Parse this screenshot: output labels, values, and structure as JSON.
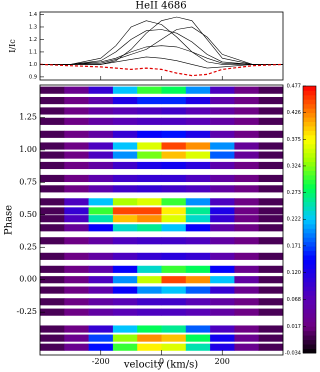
{
  "chart_data": [
    {
      "type": "line",
      "title": "HeII 4686",
      "ylabel": "I/Ic",
      "x": [
        -400,
        -300,
        -200,
        -150,
        -100,
        -50,
        0,
        50,
        100,
        150,
        200,
        300,
        400
      ],
      "series": [
        {
          "color": "#000000",
          "values": [
            1.0,
            1.0,
            1.05,
            1.15,
            1.3,
            1.35,
            1.32,
            1.22,
            1.1,
            1.02,
            1.0,
            1.0,
            1.0
          ]
        },
        {
          "color": "#000000",
          "values": [
            1.0,
            1.0,
            1.0,
            1.03,
            1.12,
            1.25,
            1.35,
            1.38,
            1.35,
            1.2,
            1.05,
            1.0,
            1.0
          ]
        },
        {
          "color": "#000000",
          "values": [
            1.0,
            1.0,
            1.03,
            1.1,
            1.2,
            1.27,
            1.28,
            1.25,
            1.18,
            1.08,
            1.02,
            1.0,
            1.0
          ]
        },
        {
          "color": "#000000",
          "values": [
            1.0,
            1.0,
            1.02,
            1.05,
            1.1,
            1.14,
            1.15,
            1.14,
            1.1,
            1.05,
            1.01,
            1.0,
            1.0
          ]
        },
        {
          "color": "#000000",
          "values": [
            1.0,
            1.0,
            1.0,
            1.02,
            1.04,
            1.06,
            1.05,
            1.03,
            1.0,
            0.97,
            0.98,
            1.0,
            1.0
          ]
        },
        {
          "color": "#000000",
          "values": [
            1.0,
            1.0,
            1.01,
            1.04,
            1.08,
            1.12,
            1.2,
            1.28,
            1.3,
            1.22,
            1.08,
            1.0,
            1.0
          ]
        },
        {
          "color": "#e00000",
          "dashed": true,
          "values": [
            1.0,
            0.99,
            0.98,
            0.97,
            0.96,
            0.97,
            0.96,
            0.93,
            0.91,
            0.92,
            0.96,
            0.99,
            1.0
          ]
        }
      ],
      "xlim": [
        -400,
        400
      ],
      "xticks": [
        -200,
        0,
        200
      ],
      "ylim": [
        0.875,
        1.42
      ],
      "yticks": [
        0.9,
        {
          "value": 1,
          "label": "1.0"
        },
        1.1,
        1.2,
        1.3,
        1.4
      ]
    },
    {
      "type": "heatmap",
      "xlabel": "velocity (km/s)",
      "ylabel": "Phase",
      "x": [
        -360,
        -280,
        -200,
        -120,
        -40,
        40,
        120,
        200,
        280,
        360
      ],
      "y": [
        -0.52,
        -0.45,
        -0.38,
        -0.25,
        -0.17,
        -0.08,
        0.0,
        0.08,
        0.18,
        0.3,
        0.4,
        0.47,
        0.53,
        0.6,
        0.7,
        0.78,
        0.88,
        0.96,
        1.03,
        1.12,
        1.22,
        1.3,
        1.38,
        1.46
      ],
      "values": [
        [
          0.0,
          0.03,
          0.15,
          0.3,
          0.38,
          0.36,
          0.25,
          0.12,
          0.03,
          0.0
        ],
        [
          0.0,
          0.03,
          0.17,
          0.33,
          0.42,
          0.4,
          0.28,
          0.13,
          0.03,
          0.0
        ],
        [
          0.0,
          0.02,
          0.1,
          0.22,
          0.28,
          0.26,
          0.18,
          0.08,
          0.02,
          0.0
        ],
        [
          0.0,
          0.02,
          0.05,
          0.07,
          0.08,
          0.08,
          0.07,
          0.05,
          0.02,
          0.0
        ],
        [
          0.0,
          0.02,
          0.05,
          0.07,
          0.09,
          0.09,
          0.07,
          0.05,
          0.02,
          0.0
        ],
        [
          0.0,
          0.02,
          0.06,
          0.14,
          0.2,
          0.22,
          0.18,
          0.1,
          0.03,
          0.0
        ],
        [
          0.0,
          0.02,
          0.08,
          0.2,
          0.35,
          0.45,
          0.42,
          0.22,
          0.05,
          0.0
        ],
        [
          0.0,
          0.02,
          0.06,
          0.14,
          0.24,
          0.3,
          0.28,
          0.14,
          0.03,
          0.0
        ],
        [
          0.0,
          0.02,
          0.05,
          0.08,
          0.1,
          0.11,
          0.1,
          0.06,
          0.02,
          0.0
        ],
        [
          0.0,
          0.02,
          0.05,
          0.08,
          0.09,
          0.09,
          0.08,
          0.05,
          0.02,
          0.0
        ],
        [
          0.0,
          0.04,
          0.14,
          0.24,
          0.26,
          0.22,
          0.14,
          0.06,
          0.02,
          0.0
        ],
        [
          0.0,
          0.08,
          0.25,
          0.4,
          0.42,
          0.36,
          0.24,
          0.1,
          0.02,
          0.0
        ],
        [
          0.0,
          0.1,
          0.3,
          0.45,
          0.45,
          0.38,
          0.26,
          0.12,
          0.02,
          0.0
        ],
        [
          0.0,
          0.08,
          0.22,
          0.34,
          0.36,
          0.3,
          0.2,
          0.08,
          0.02,
          0.0
        ],
        [
          0.0,
          0.02,
          0.06,
          0.09,
          0.1,
          0.09,
          0.08,
          0.05,
          0.02,
          0.0
        ],
        [
          0.0,
          0.02,
          0.06,
          0.09,
          0.1,
          0.1,
          0.08,
          0.05,
          0.02,
          0.0
        ],
        [
          0.0,
          0.02,
          0.05,
          0.09,
          0.12,
          0.13,
          0.11,
          0.06,
          0.02,
          0.0
        ],
        [
          0.0,
          0.02,
          0.08,
          0.2,
          0.32,
          0.4,
          0.36,
          0.18,
          0.04,
          0.0
        ],
        [
          0.0,
          0.02,
          0.08,
          0.22,
          0.36,
          0.45,
          0.42,
          0.2,
          0.04,
          0.0
        ],
        [
          0.0,
          0.02,
          0.05,
          0.1,
          0.14,
          0.15,
          0.12,
          0.06,
          0.02,
          0.0
        ],
        [
          0.0,
          0.02,
          0.05,
          0.07,
          0.08,
          0.08,
          0.07,
          0.05,
          0.02,
          0.0
        ],
        [
          0.0,
          0.02,
          0.05,
          0.07,
          0.08,
          0.09,
          0.07,
          0.05,
          0.02,
          0.0
        ],
        [
          0.0,
          0.02,
          0.06,
          0.12,
          0.16,
          0.16,
          0.12,
          0.06,
          0.02,
          0.0
        ],
        [
          0.0,
          0.03,
          0.1,
          0.22,
          0.3,
          0.28,
          0.2,
          0.08,
          0.02,
          0.0
        ]
      ],
      "xlim": [
        -400,
        400
      ],
      "xticks": [
        -200,
        0,
        200
      ],
      "ylim": [
        -0.58,
        1.5
      ],
      "yticks": [
        -0.25,
        {
          "value": 0,
          "label": "0.00"
        },
        0.25,
        {
          "value": 0.5,
          "label": "0.50"
        },
        0.75,
        {
          "value": 1,
          "label": "1.00"
        },
        1.25
      ],
      "clim": [
        -0.034,
        0.477
      ],
      "cticks": [
        -0.034,
        0.017,
        0.068,
        {
          "value": 0.12,
          "label": "0.120"
        },
        0.171,
        0.222,
        0.273,
        0.324,
        0.375,
        0.426,
        0.477
      ]
    }
  ]
}
